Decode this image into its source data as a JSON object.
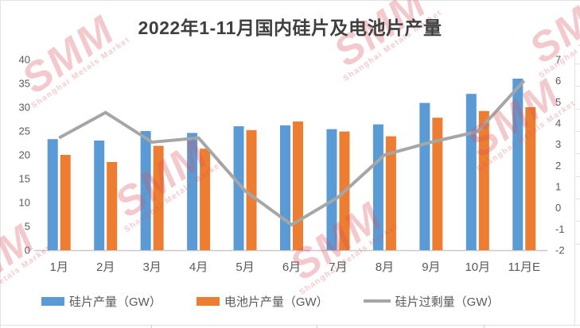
{
  "title": "2022年1-11月国内硅片及电池片产量",
  "watermark": {
    "logo": "SMM",
    "subtext": "Shanghai Metals Market",
    "color": "#D9515C"
  },
  "colors": {
    "wafer_bar": "#5B9BD5",
    "cell_bar": "#ED7D31",
    "surplus_line": "#A6A6A6",
    "axis_text": "#595959",
    "title_text": "#3F3F3F",
    "axis_line": "#C9C9C9"
  },
  "chart_data": {
    "type": "bar",
    "title": "2022年1-11月国内硅片及电池片产量",
    "categories": [
      "1月",
      "2月",
      "3月",
      "4月",
      "5月",
      "6月",
      "7月",
      "8月",
      "9月",
      "10月",
      "11月E"
    ],
    "series": [
      {
        "name": "硅片产量（GW）",
        "type": "bar",
        "axis": "left",
        "color": "#5B9BD5",
        "values": [
          23.3,
          23.0,
          25.0,
          24.6,
          26.0,
          26.2,
          25.4,
          26.4,
          30.9,
          32.8,
          36.0
        ]
      },
      {
        "name": "电池片产量（GW）",
        "type": "bar",
        "axis": "left",
        "color": "#ED7D31",
        "values": [
          20.0,
          18.5,
          21.9,
          21.3,
          25.2,
          27.0,
          24.9,
          23.9,
          27.8,
          29.2,
          30.0
        ]
      },
      {
        "name": "硅片过剩量（GW）",
        "type": "line",
        "axis": "right",
        "color": "#A6A6A6",
        "values": [
          3.3,
          4.5,
          3.1,
          3.3,
          0.8,
          -0.8,
          0.5,
          2.5,
          3.1,
          3.6,
          6.0
        ]
      }
    ],
    "left_axis": {
      "min": 0,
      "max": 40,
      "step": 5,
      "ticks": [
        0,
        5,
        10,
        15,
        20,
        25,
        30,
        35,
        40
      ]
    },
    "right_axis": {
      "min": -2,
      "max": 7,
      "step": 1,
      "ticks": [
        -2,
        -1,
        0,
        1,
        2,
        3,
        4,
        5,
        6,
        7
      ]
    },
    "legend_position": "bottom",
    "gridlines": false
  }
}
